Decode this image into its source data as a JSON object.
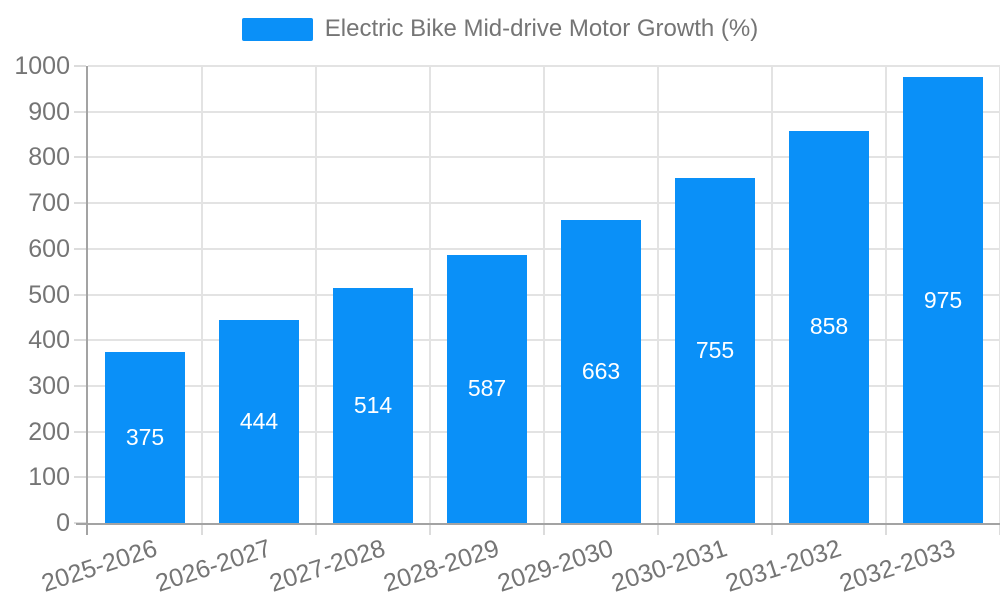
{
  "legend": {
    "items": [
      {
        "label": "Electric Bike Mid-drive Motor Growth (%)",
        "color": "#0a90f8"
      }
    ]
  },
  "chart_data": {
    "type": "bar",
    "title": "Electric Bike Mid-drive Motor Growth (%)",
    "series_name": "Electric Bike Mid-drive Motor Growth (%)",
    "categories": [
      "2025-2026",
      "2026-2027",
      "2027-2028",
      "2028-2029",
      "2029-2030",
      "2030-2031",
      "2031-2032",
      "2032-2033"
    ],
    "values": [
      375,
      444,
      514,
      587,
      663,
      755,
      858,
      975
    ],
    "value_labels": [
      "375",
      "444",
      "514",
      "587",
      "663",
      "755",
      "858",
      "975"
    ],
    "xlabel": "",
    "ylabel": "",
    "ylim": [
      0,
      1000
    ],
    "y_ticks": [
      0,
      100,
      200,
      300,
      400,
      500,
      600,
      700,
      800,
      900,
      1000
    ],
    "grid": true,
    "legend_position": "top-center",
    "x_label_rotation_deg": -18,
    "colors": {
      "bar": "#0a90f8",
      "value_label": "#ffffff",
      "axis_line": "#a3a3a3",
      "grid_line": "#e3e3e3",
      "tick_mark": "#dcdcdc",
      "tick_label": "#757575",
      "legend_text": "#757575",
      "background": "#ffffff"
    }
  }
}
